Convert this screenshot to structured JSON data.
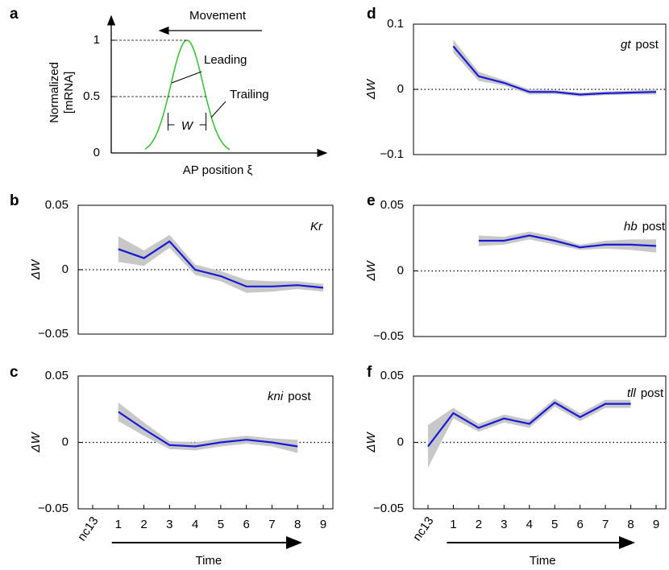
{
  "chart_data": [
    {
      "type": "schematic",
      "panel_label": "a",
      "ylabel": [
        "Normalized",
        "[mRNA]"
      ],
      "xlabel": "AP position ξ",
      "ylim": [
        0,
        1.1
      ],
      "yticks": [
        0,
        0.5,
        1
      ],
      "annotations": {
        "movement": "Movement",
        "leading": "Leading",
        "trailing": "Trailing",
        "width": "W"
      },
      "color": "#33bb33"
    },
    {
      "type": "line",
      "panel_label": "b",
      "gene": "Kr",
      "ylabel": "ΔW",
      "ylim": [
        -0.05,
        0.05
      ],
      "yticks": [
        {
          "value": -0.05,
          "label": "−0.05"
        },
        0,
        0.05
      ],
      "color": "#1a1ad6",
      "band_color": "#c8c8c8",
      "values": [
        null,
        0.016,
        0.009,
        0.022,
        0.0,
        -0.005,
        -0.013,
        -0.013,
        -0.012,
        -0.014
      ],
      "errors": [
        null,
        0.01,
        0.006,
        0.005,
        0.004,
        0.004,
        0.005,
        0.004,
        0.003,
        0.003
      ]
    },
    {
      "type": "line",
      "panel_label": "c",
      "gene": "kni",
      "suffix": "post",
      "ylabel": "ΔW",
      "xlabel": "Time",
      "ylim": [
        -0.05,
        0.05
      ],
      "yticks": [
        {
          "value": -0.05,
          "label": "−0.05"
        },
        0,
        0.05
      ],
      "color": "#1a1ad6",
      "band_color": "#c8c8c8",
      "categories": [
        "nc13",
        "1",
        "2",
        "3",
        "4",
        "5",
        "6",
        "7",
        "8",
        "9"
      ],
      "values": [
        null,
        0.023,
        0.01,
        -0.002,
        -0.003,
        0.0,
        0.002,
        0.0,
        -0.003,
        null
      ],
      "errors": [
        null,
        0.007,
        0.005,
        0.003,
        0.003,
        0.003,
        0.003,
        0.003,
        0.005,
        null
      ]
    },
    {
      "type": "line",
      "panel_label": "d",
      "gene": "gt",
      "suffix": "post",
      "ylabel": "ΔW",
      "ylim": [
        -0.1,
        0.1
      ],
      "yticks": [
        {
          "value": -0.1,
          "label": "−0.1"
        },
        0,
        0.1
      ],
      "color": "#1a1ad6",
      "band_color": "#c8c8c8",
      "values": [
        null,
        0.066,
        0.02,
        0.01,
        -0.004,
        -0.004,
        -0.008,
        -0.006,
        -0.005,
        -0.004
      ],
      "errors": [
        null,
        0.01,
        0.007,
        0.004,
        0.004,
        0.003,
        0.003,
        0.003,
        0.003,
        0.004
      ]
    },
    {
      "type": "line",
      "panel_label": "e",
      "gene": "hb",
      "suffix": "post",
      "ylabel": "ΔW",
      "ylim": [
        -0.05,
        0.05
      ],
      "yticks": [
        {
          "value": -0.05,
          "label": "−0.05"
        },
        0,
        0.05
      ],
      "color": "#1a1ad6",
      "band_color": "#c8c8c8",
      "values": [
        null,
        null,
        0.023,
        0.023,
        0.027,
        0.023,
        0.018,
        0.02,
        0.02,
        0.019
      ],
      "errors": [
        null,
        null,
        0.004,
        0.003,
        0.003,
        0.003,
        0.002,
        0.003,
        0.004,
        0.005
      ]
    },
    {
      "type": "line",
      "panel_label": "f",
      "gene": "tll",
      "suffix": "post",
      "ylabel": "ΔW",
      "xlabel": "Time",
      "ylim": [
        -0.05,
        0.05
      ],
      "yticks": [
        {
          "value": -0.05,
          "label": "−0.05"
        },
        0,
        0.05
      ],
      "color": "#1a1ad6",
      "band_color": "#c8c8c8",
      "categories": [
        "nc13",
        "1",
        "2",
        "3",
        "4",
        "5",
        "6",
        "7",
        "8",
        "9"
      ],
      "values": [
        -0.003,
        0.022,
        0.011,
        0.018,
        0.014,
        0.03,
        0.019,
        0.029,
        0.029,
        null
      ],
      "errors": [
        0.016,
        0.004,
        0.003,
        0.003,
        0.003,
        0.003,
        0.003,
        0.003,
        0.003,
        null
      ]
    }
  ]
}
